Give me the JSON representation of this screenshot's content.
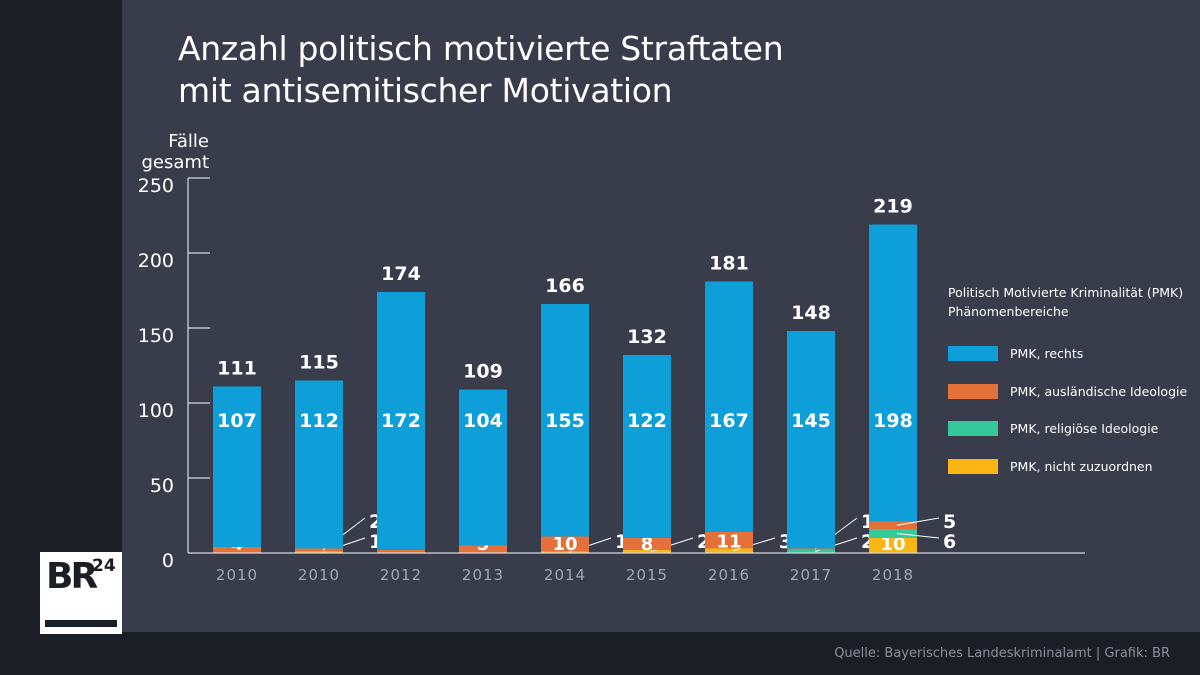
{
  "title_line1": "Anzahl politisch motivierte Straftaten",
  "title_line2": "mit antisemitischer Motivation",
  "source": "Quelle: Bayerisches Landeskriminalamt | Grafik: BR",
  "logo_text": "BR24",
  "chart_data": {
    "type": "bar",
    "stacked": true,
    "title": "Anzahl politisch motivierte Straftaten mit antisemitischer Motivation",
    "ylabel": "Fälle gesamt",
    "ylabel_lines": [
      "Fälle",
      "gesamt"
    ],
    "ylim": [
      0,
      250
    ],
    "yticks": [
      0,
      50,
      100,
      150,
      200,
      250
    ],
    "categories": [
      "2010",
      "2010",
      "2012",
      "2013",
      "2014",
      "2015",
      "2016",
      "2017",
      "2018"
    ],
    "totals": [
      111,
      115,
      174,
      109,
      166,
      132,
      181,
      148,
      219
    ],
    "legend_title": [
      "Politisch Motivierte Kriminalität (PMK)",
      "Phänomenbereiche"
    ],
    "legend_position": "right",
    "series": [
      {
        "name": "PMK, rechts",
        "color": "#0f9fd8",
        "values": [
          107,
          112,
          172,
          104,
          155,
          122,
          167,
          145,
          198
        ]
      },
      {
        "name": "PMK, ausländische Ideologie",
        "color": "#e4703a",
        "values": [
          4,
          2,
          2,
          5,
          10,
          8,
          11,
          1,
          5
        ]
      },
      {
        "name": "PMK, religiöse Ideologie",
        "color": "#35c99a",
        "values": [
          0,
          0,
          0,
          0,
          0,
          0,
          0,
          2,
          6
        ]
      },
      {
        "name": "PMK, nicht zuzuordnen",
        "color": "#fbb613",
        "values": [
          0,
          1,
          0,
          0,
          1,
          2,
          3,
          0,
          10
        ]
      }
    ]
  }
}
